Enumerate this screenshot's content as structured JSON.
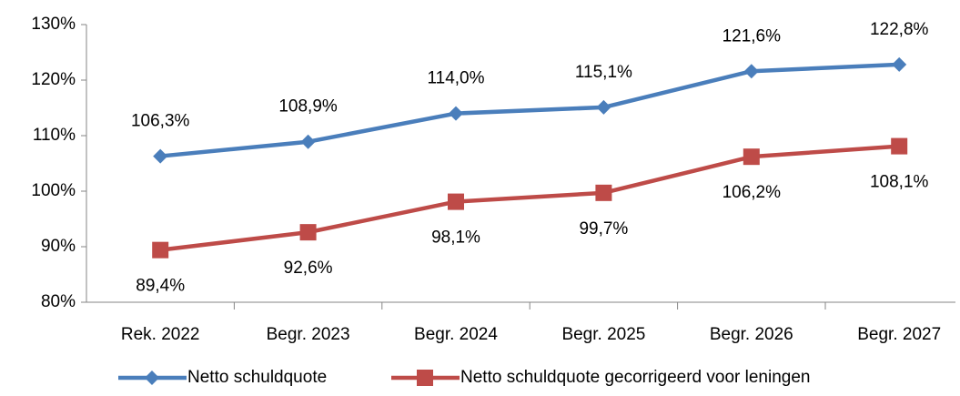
{
  "chart_data": {
    "type": "line",
    "categories": [
      "Rek. 2022",
      "Begr. 2023",
      "Begr. 2024",
      "Begr. 2025",
      "Begr. 2026",
      "Begr. 2027"
    ],
    "series": [
      {
        "name": "Netto schuldquote",
        "color": "#4a7ebb",
        "marker": "diamond",
        "values": [
          106.3,
          108.9,
          114.0,
          115.1,
          121.6,
          122.8
        ],
        "value_labels": [
          "106,3%",
          "108,9%",
          "114,0%",
          "115,1%",
          "121,6%",
          "122,8%"
        ]
      },
      {
        "name": "Netto schuldquote gecorrigeerd voor leningen",
        "color": "#be4b48",
        "marker": "square",
        "values": [
          89.4,
          92.6,
          98.1,
          99.7,
          106.2,
          108.1
        ],
        "value_labels": [
          "89,4%",
          "92,6%",
          "98,1%",
          "99,7%",
          "106,2%",
          "108,1%"
        ]
      }
    ],
    "ylim": [
      80,
      130
    ],
    "yticks": [
      {
        "value": 80,
        "label": "80%"
      },
      {
        "value": 90,
        "label": "90%"
      },
      {
        "value": 100,
        "label": "100%"
      },
      {
        "value": 110,
        "label": "110%"
      },
      {
        "value": 120,
        "label": "120%"
      },
      {
        "value": 130,
        "label": "130%"
      }
    ],
    "grid": false,
    "legend": "bottom"
  }
}
